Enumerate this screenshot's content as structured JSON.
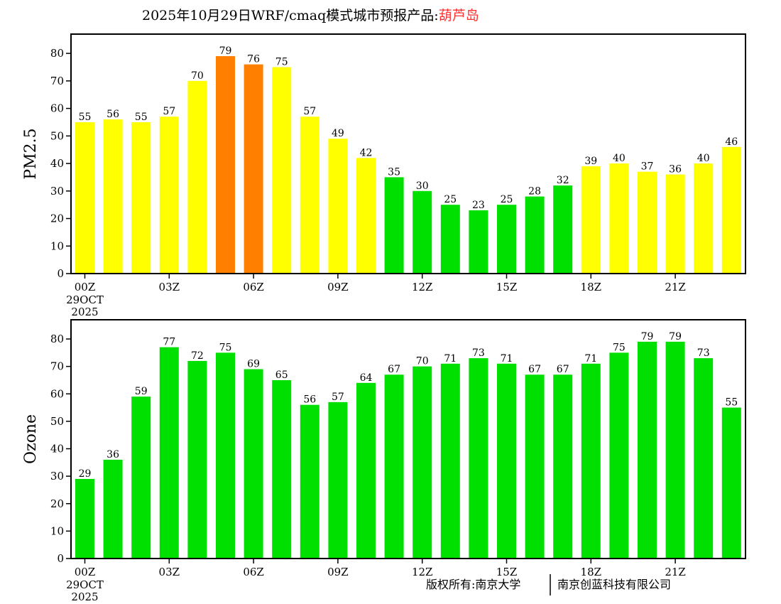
{
  "title": {
    "prefix": "2025年10月29日WRF/cmaq模式城市预报产品:",
    "city": "葫芦岛",
    "city_color": "#ff3030"
  },
  "footer": {
    "left": "版权所有:南京大学",
    "right": "南京创蓝科技有限公司"
  },
  "colors": {
    "good": "#00e000",
    "moderate": "#ffff00",
    "sensitive": "#ff8000"
  },
  "chart_data": [
    {
      "type": "bar",
      "ylabel": "PM2.5",
      "ylim": [
        0,
        87
      ],
      "yticks": [
        0,
        10,
        20,
        30,
        40,
        50,
        60,
        70,
        80
      ],
      "xtick_labels": [
        "00Z",
        "03Z",
        "06Z",
        "09Z",
        "12Z",
        "15Z",
        "18Z",
        "21Z"
      ],
      "xtick_sub": [
        "29OCT",
        "2025"
      ],
      "values": [
        55,
        56,
        55,
        57,
        70,
        79,
        76,
        75,
        57,
        49,
        42,
        35,
        30,
        25,
        23,
        25,
        28,
        32,
        39,
        40,
        37,
        36,
        40,
        46
      ],
      "color_levels": [
        {
          "max": 35,
          "color": "good"
        },
        {
          "max": 75,
          "color": "moderate"
        },
        {
          "max": 115,
          "color": "sensitive"
        }
      ]
    },
    {
      "type": "bar",
      "ylabel": "Ozone",
      "ylim": [
        0,
        87
      ],
      "yticks": [
        0,
        10,
        20,
        30,
        40,
        50,
        60,
        70,
        80
      ],
      "xtick_labels": [
        "00Z",
        "03Z",
        "06Z",
        "09Z",
        "12Z",
        "15Z",
        "18Z",
        "21Z"
      ],
      "xtick_sub": [
        "29OCT",
        "2025"
      ],
      "values": [
        29,
        36,
        59,
        77,
        72,
        75,
        69,
        65,
        56,
        57,
        64,
        67,
        70,
        71,
        73,
        71,
        67,
        67,
        71,
        75,
        79,
        79,
        73,
        55
      ],
      "color_levels": [
        {
          "max": 160,
          "color": "good"
        }
      ]
    }
  ]
}
